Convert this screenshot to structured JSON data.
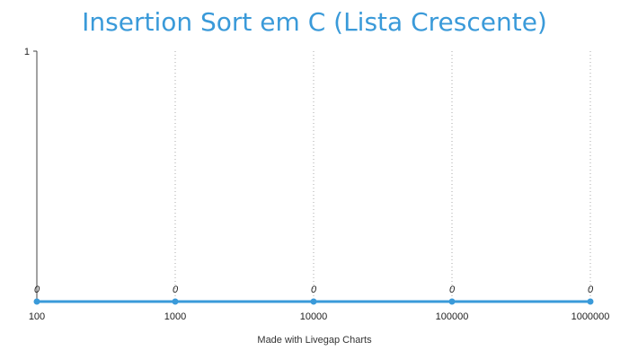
{
  "chart_data": {
    "type": "line",
    "title": "Insertion Sort em C (Lista Crescente)",
    "categories": [
      "100",
      "1000",
      "10000",
      "100000",
      "1000000"
    ],
    "values": [
      0,
      0,
      0,
      0,
      0
    ],
    "data_labels": [
      "0",
      "0",
      "0",
      "0",
      "0"
    ],
    "y_ticks": [
      "1"
    ],
    "ylim": [
      0,
      1
    ],
    "grid": "vertical-dotted",
    "colors": {
      "series": "#3a9ad9",
      "title": "#3a9ad9",
      "axis": "#444444",
      "grid": "#aaaaaa"
    }
  },
  "footer": "Made with Livegap Charts"
}
